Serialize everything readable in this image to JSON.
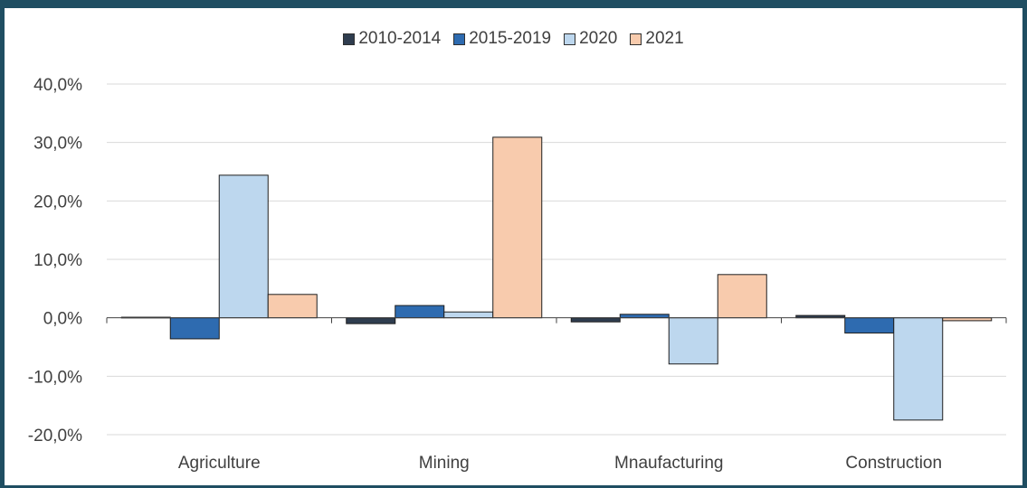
{
  "chart_data": {
    "type": "bar",
    "title": "",
    "xlabel": "",
    "ylabel": "",
    "categories": [
      "Agriculture",
      "Mining",
      "Mnaufacturing",
      "Construction"
    ],
    "series": [
      {
        "name": "2010-2014",
        "color": "#2f3d4f",
        "values": [
          0.1,
          -1.0,
          -0.7,
          0.4
        ]
      },
      {
        "name": "2015-2019",
        "color": "#2e6bb0",
        "values": [
          -3.6,
          2.1,
          0.6,
          -2.6
        ]
      },
      {
        "name": "2020",
        "color": "#bdd7ee",
        "values": [
          24.4,
          1.0,
          -7.9,
          -17.5
        ]
      },
      {
        "name": "2021",
        "color": "#f8cbad",
        "values": [
          4.0,
          30.9,
          7.4,
          -0.5
        ]
      }
    ],
    "yticks": [
      "40,0%",
      "30,0%",
      "20,0%",
      "10,0%",
      "0,0%",
      "-10,0%",
      "-20,0%"
    ],
    "ylim": [
      -20,
      40
    ],
    "grid": true,
    "legend_position": "top"
  }
}
